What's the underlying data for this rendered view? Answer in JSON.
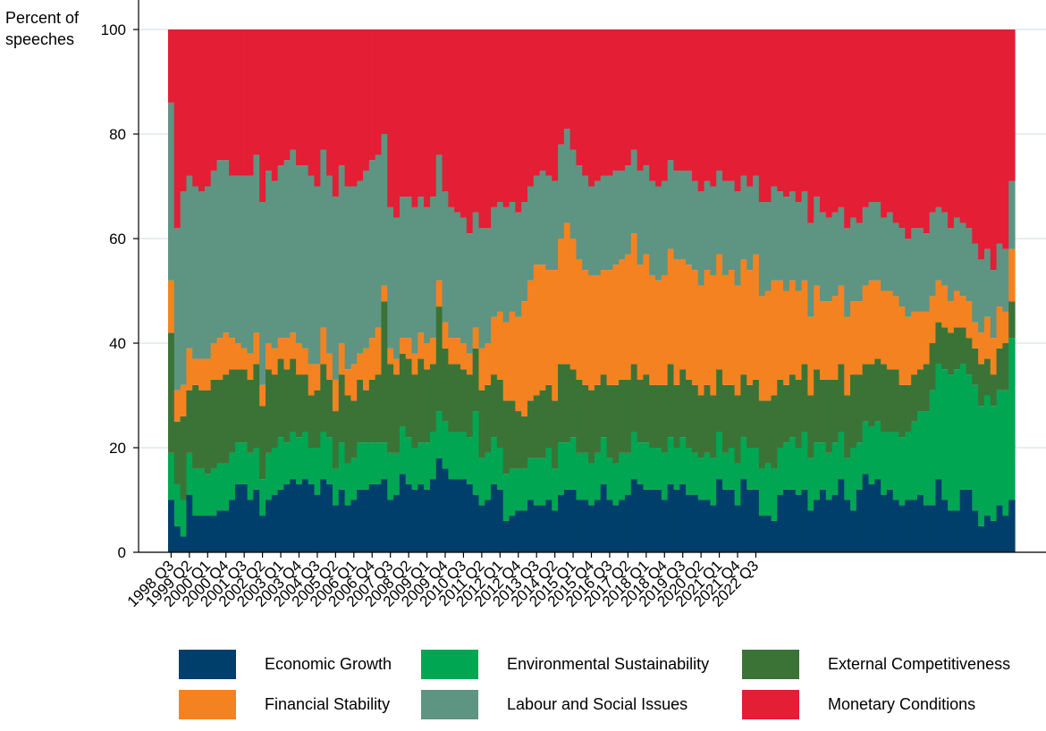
{
  "chart_data": {
    "type": "area",
    "stacked": true,
    "ylabel": "Percent of speeches",
    "ylim": [
      0,
      100
    ],
    "yticks": [
      0,
      20,
      40,
      60,
      80,
      100
    ],
    "grid": true,
    "legend_position": "bottom",
    "x_start": "1998 Q3",
    "x_end": "2022 Q4",
    "xtick_labels": [
      "1998 Q3",
      "1999 Q2",
      "2000 Q1",
      "2000 Q4",
      "2001 Q3",
      "2002 Q2",
      "2003 Q1",
      "2003 Q4",
      "2004 Q3",
      "2005 Q2",
      "2006 Q1",
      "2006 Q4",
      "2007 Q3",
      "2008 Q2",
      "2009 Q1",
      "2009 Q4",
      "2010 Q3",
      "2011 Q2",
      "2012 Q1",
      "2012 Q4",
      "2013 Q3",
      "2014 Q2",
      "2015 Q1",
      "2015 Q4",
      "2016 Q3",
      "2017 Q2",
      "2018 Q1",
      "2018 Q4",
      "2019 Q3",
      "2020 Q2",
      "2021 Q1",
      "2021 Q4",
      "2022 Q3"
    ],
    "series": [
      {
        "name": "Economic Growth",
        "color": "#003f6b",
        "values": [
          10,
          5,
          3,
          11,
          7,
          7,
          7,
          7,
          8,
          8,
          10,
          13,
          13,
          10,
          12,
          7,
          10,
          11,
          12,
          13,
          14,
          13,
          14,
          13,
          11,
          14,
          13,
          9,
          12,
          9,
          10,
          12,
          12,
          13,
          13,
          14,
          10,
          11,
          15,
          13,
          12,
          13,
          12,
          14,
          18,
          16,
          14,
          14,
          14,
          13,
          11,
          9,
          10,
          13,
          12,
          6,
          7,
          8,
          8,
          10,
          9,
          9,
          10,
          8,
          11,
          12,
          12,
          10,
          10,
          9,
          10,
          13,
          10,
          9,
          10,
          11,
          14,
          13,
          12,
          12,
          12,
          10,
          13,
          12,
          13,
          11,
          11,
          10,
          10,
          9,
          14,
          12,
          12,
          9,
          14,
          12,
          12,
          7,
          7,
          6,
          11,
          12,
          12,
          11,
          12,
          8,
          10,
          12,
          10,
          11,
          14,
          10,
          8,
          12,
          15,
          13,
          14,
          11,
          12,
          10,
          9,
          10,
          10,
          11,
          9,
          9,
          14,
          10,
          8,
          8,
          12,
          12,
          8,
          5,
          7,
          6,
          9,
          7,
          10
        ]
      },
      {
        "name": "Environmental Sustainability",
        "color": "#00a651",
        "values": [
          9,
          8,
          7,
          8,
          9,
          9,
          8,
          9,
          9,
          9,
          9,
          8,
          8,
          9,
          8,
          7,
          9,
          9,
          10,
          8,
          9,
          9,
          9,
          7,
          9,
          9,
          9,
          7,
          9,
          8,
          8,
          9,
          9,
          8,
          8,
          7,
          9,
          8,
          9,
          9,
          8,
          8,
          9,
          9,
          9,
          9,
          9,
          9,
          9,
          9,
          16,
          9,
          9,
          9,
          8,
          9,
          9,
          8,
          8,
          8,
          9,
          9,
          10,
          8,
          10,
          9,
          10,
          9,
          9,
          8,
          9,
          9,
          8,
          8,
          9,
          8,
          9,
          8,
          9,
          8,
          8,
          9,
          9,
          8,
          9,
          9,
          8,
          8,
          9,
          9,
          9,
          7,
          8,
          8,
          8,
          8,
          8,
          9,
          10,
          10,
          9,
          9,
          10,
          9,
          11,
          10,
          11,
          9,
          9,
          10,
          9,
          8,
          12,
          9,
          10,
          11,
          11,
          12,
          11,
          13,
          13,
          13,
          15,
          16,
          18,
          22,
          22,
          25,
          26,
          27,
          24,
          22,
          24,
          23,
          23,
          22,
          22,
          24,
          31
        ]
      },
      {
        "name": "External Competitiveness",
        "color": "#3b7336",
        "values": [
          23,
          12,
          16,
          12,
          16,
          15,
          16,
          17,
          16,
          17,
          16,
          14,
          14,
          14,
          16,
          14,
          16,
          14,
          15,
          14,
          14,
          12,
          11,
          10,
          11,
          13,
          11,
          11,
          13,
          13,
          11,
          12,
          10,
          12,
          13,
          27,
          17,
          15,
          14,
          15,
          14,
          16,
          14,
          13,
          20,
          14,
          13,
          13,
          12,
          12,
          12,
          13,
          13,
          12,
          13,
          14,
          13,
          11,
          10,
          11,
          12,
          13,
          12,
          13,
          15,
          15,
          13,
          14,
          13,
          14,
          13,
          12,
          14,
          15,
          14,
          14,
          13,
          12,
          13,
          12,
          12,
          13,
          14,
          12,
          13,
          13,
          13,
          12,
          13,
          12,
          12,
          13,
          12,
          13,
          12,
          12,
          13,
          13,
          12,
          14,
          13,
          11,
          12,
          13,
          13,
          12,
          14,
          12,
          14,
          12,
          13,
          12,
          14,
          13,
          11,
          12,
          12,
          13,
          12,
          12,
          10,
          9,
          9,
          8,
          9,
          9,
          8,
          8,
          8,
          8,
          7,
          7,
          7,
          8,
          7,
          6,
          8,
          9,
          7
        ]
      },
      {
        "name": "Financial Stability",
        "color": "#f58220",
        "values": [
          10,
          6,
          6,
          8,
          5,
          6,
          6,
          7,
          8,
          8,
          6,
          5,
          4,
          5,
          6,
          4,
          5,
          5,
          4,
          6,
          5,
          6,
          5,
          6,
          5,
          7,
          5,
          6,
          6,
          5,
          7,
          5,
          8,
          8,
          9,
          3,
          3,
          3,
          3,
          4,
          4,
          5,
          5,
          5,
          5,
          5,
          5,
          5,
          5,
          4,
          4,
          8,
          8,
          11,
          13,
          15,
          17,
          18,
          22,
          23,
          25,
          24,
          22,
          25,
          24,
          27,
          25,
          23,
          22,
          22,
          21,
          20,
          22,
          23,
          23,
          24,
          25,
          22,
          23,
          21,
          20,
          21,
          22,
          24,
          21,
          22,
          22,
          21,
          22,
          23,
          22,
          21,
          22,
          21,
          22,
          22,
          24,
          20,
          21,
          22,
          19,
          18,
          18,
          17,
          16,
          15,
          16,
          15,
          15,
          16,
          15,
          15,
          14,
          14,
          15,
          16,
          15,
          14,
          15,
          14,
          15,
          13,
          12,
          11,
          10,
          9,
          8,
          8,
          6,
          7,
          6,
          7,
          5,
          6,
          8,
          7,
          8,
          6,
          10
        ]
      },
      {
        "name": "Labour and Social Issues",
        "color": "#5e9482",
        "values": [
          34,
          31,
          37,
          33,
          33,
          32,
          33,
          33,
          34,
          33,
          31,
          32,
          33,
          34,
          34,
          35,
          33,
          32,
          33,
          34,
          35,
          34,
          35,
          36,
          34,
          34,
          34,
          35,
          34,
          35,
          34,
          33,
          34,
          34,
          33,
          29,
          27,
          27,
          27,
          27,
          28,
          26,
          26,
          27,
          24,
          25,
          25,
          24,
          24,
          23,
          22,
          23,
          22,
          21,
          21,
          22,
          21,
          20,
          19,
          18,
          17,
          18,
          18,
          17,
          18,
          18,
          17,
          18,
          18,
          17,
          18,
          18,
          18,
          18,
          17,
          17,
          16,
          18,
          17,
          18,
          18,
          18,
          17,
          17,
          17,
          18,
          17,
          18,
          17,
          17,
          16,
          18,
          17,
          18,
          16,
          16,
          15,
          18,
          17,
          18,
          17,
          18,
          17,
          17,
          17,
          18,
          17,
          17,
          16,
          16,
          15,
          17,
          16,
          15,
          15,
          15,
          15,
          14,
          15,
          14,
          15,
          15,
          16,
          16,
          15,
          16,
          14,
          14,
          14,
          14,
          14,
          14,
          15,
          14,
          13,
          13,
          12,
          12,
          13
        ]
      }
    ],
    "residual_series": {
      "name": "Monetary Conditions",
      "color": "#e31e35"
    }
  }
}
